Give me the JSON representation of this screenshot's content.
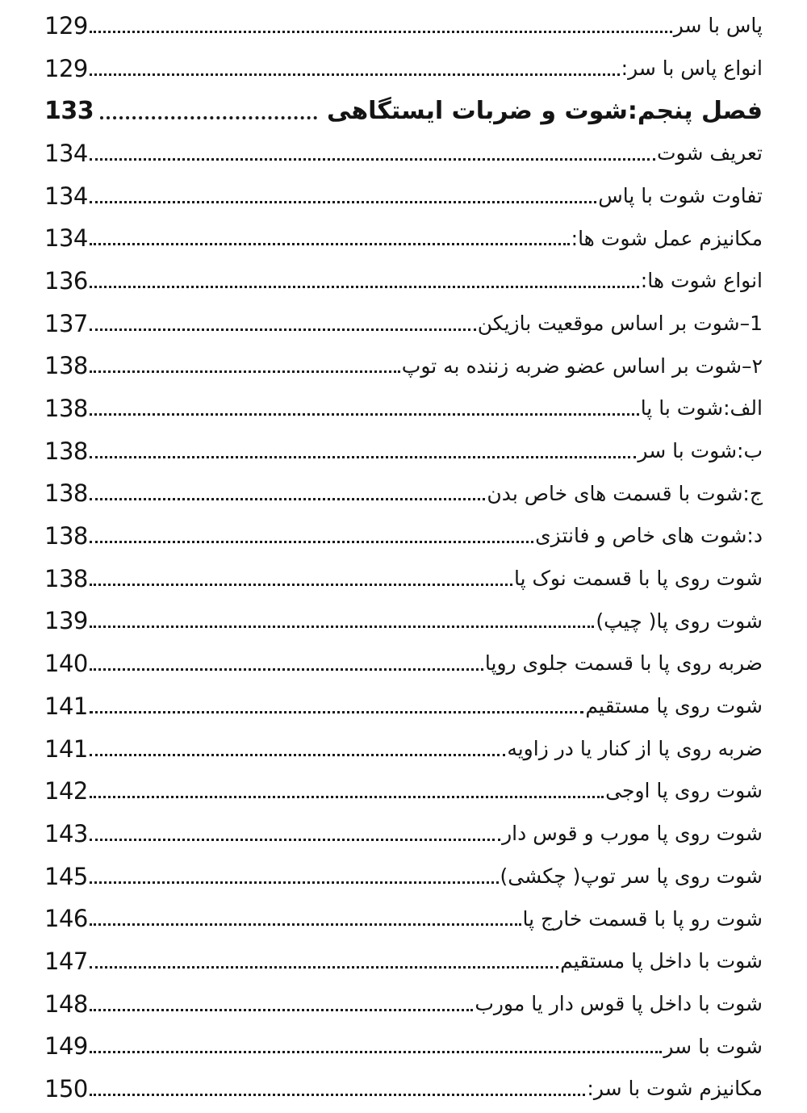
{
  "meta": {
    "language": "fa",
    "direction": "rtl",
    "text_color": "#141414",
    "background_color": "#ffffff",
    "dot_leader_color": "#1a1a1a"
  },
  "toc": {
    "entries": [
      {
        "title": "پاس با سر",
        "page": "129",
        "style": "normal"
      },
      {
        "title": "انواع پاس با سر:",
        "page": "129",
        "style": "normal"
      },
      {
        "title": "فصل پنجم:شوت و ضربات ایستگاهی",
        "page": "133",
        "style": "chapter"
      },
      {
        "title": "تعریف شوت",
        "page": "134",
        "style": "normal"
      },
      {
        "title": "تفاوت شوت با پاس",
        "page": "134",
        "style": "normal"
      },
      {
        "title": "مکانیزم عمل شوت ها:",
        "page": "134",
        "style": "normal"
      },
      {
        "title": "انواع شوت ها:",
        "page": "136",
        "style": "normal"
      },
      {
        "title": "1–شوت بر اساس موقعیت بازیکن",
        "page": "137",
        "style": "normal"
      },
      {
        "title": "۲–شوت بر اساس عضو ضربه زننده به توپ",
        "page": "138",
        "style": "normal"
      },
      {
        "title": "الف:شوت با پا",
        "page": "138",
        "style": "normal"
      },
      {
        "title": "ب:شوت با سر",
        "page": "138",
        "style": "normal"
      },
      {
        "title": "ج:شوت با قسمت های خاص بدن",
        "page": "138",
        "style": "normal"
      },
      {
        "title": "د:شوت های خاص و فانتزی",
        "page": "138",
        "style": "normal"
      },
      {
        "title": "شوت روی پا با قسمت نوک پا",
        "page": "138",
        "style": "normal"
      },
      {
        "title": "شوت روی پا( چیپ)",
        "page": "139",
        "style": "normal"
      },
      {
        "title": "ضربه روی پا با قسمت جلوی روپا",
        "page": "140",
        "style": "normal"
      },
      {
        "title": "شوت روی پا مستقیم",
        "page": "141",
        "style": "normal"
      },
      {
        "title": "ضربه روی پا از کنار یا در زاویه",
        "page": "141",
        "style": "normal"
      },
      {
        "title": "شوت روی پا اوجی",
        "page": "142",
        "style": "normal"
      },
      {
        "title": "شوت روی پا مورب و قوس دار",
        "page": "143",
        "style": "normal"
      },
      {
        "title": "شوت روی پا سر توپ( چکشی)",
        "page": "145",
        "style": "normal"
      },
      {
        "title": "شوت رو پا با قسمت خارج پا",
        "page": "146",
        "style": "normal"
      },
      {
        "title": "شوت با داخل پا مستقیم",
        "page": "147",
        "style": "normal"
      },
      {
        "title": "شوت با داخل پا قوس دار یا مورب",
        "page": "148",
        "style": "normal"
      },
      {
        "title": "شوت با سر",
        "page": "149",
        "style": "normal"
      },
      {
        "title": "مکانیزم شوت با سر:",
        "page": "150",
        "style": "normal"
      }
    ]
  }
}
